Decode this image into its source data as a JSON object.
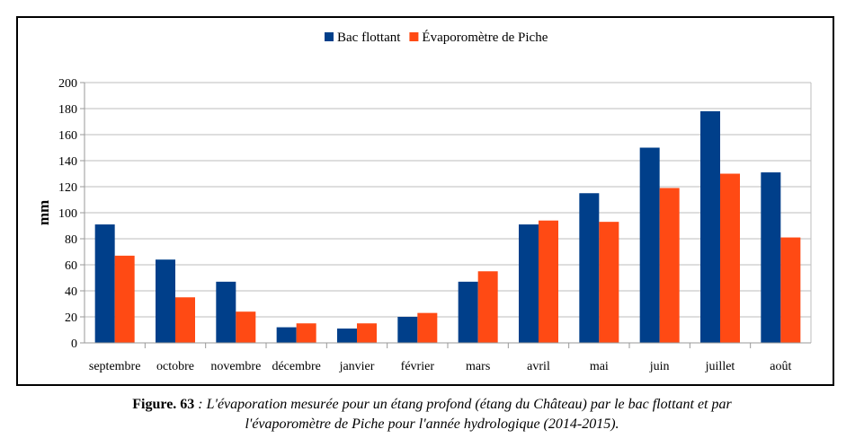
{
  "chart_data": {
    "type": "bar",
    "title": "",
    "xlabel": "",
    "ylabel": "mm",
    "ylim": [
      0,
      200
    ],
    "yticks": [
      "0",
      "20",
      "40",
      "60",
      "80",
      "100",
      "120",
      "140",
      "160",
      "180",
      "200"
    ],
    "grid": true,
    "legend_position": "top-center",
    "categories": [
      "septembre",
      "octobre",
      "novembre",
      "décembre",
      "janvier",
      "février",
      "mars",
      "avril",
      "mai",
      "juin",
      "juillet",
      "août"
    ],
    "series": [
      {
        "name": "Bac flottant",
        "color": "#003F8A",
        "values": [
          91,
          64,
          47,
          12,
          11,
          20,
          47,
          91,
          115,
          150,
          178,
          131
        ]
      },
      {
        "name": "Évaporomètre de Piche",
        "color": "#FF4A14",
        "values": [
          67,
          35,
          24,
          15,
          15,
          23,
          55,
          94,
          93,
          119,
          130,
          81
        ]
      }
    ]
  },
  "caption": {
    "figure_number": "Figure. 63",
    "text": " : L'évaporation mesurée pour un étang profond (étang du Château) par le bac flottant et par",
    "text_line2": "l'évaporomètre de Piche pour l'année hydrologique (2014-2015)."
  }
}
